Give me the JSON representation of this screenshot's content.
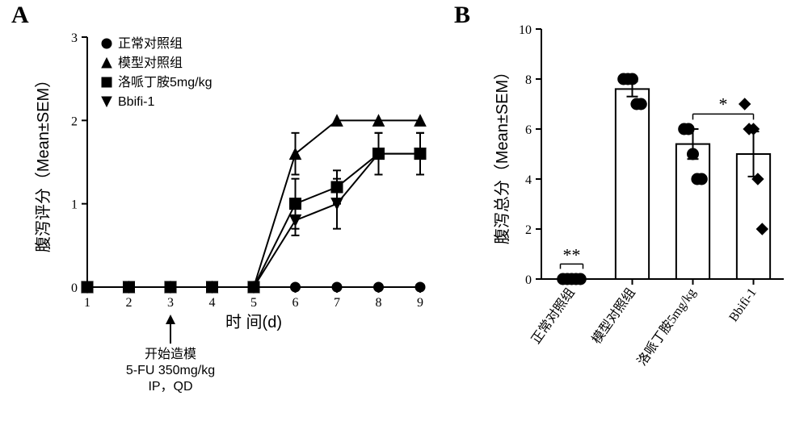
{
  "panelA": {
    "label": "A",
    "type": "line",
    "xlabel": "时 间(d)",
    "xlabel_fontsize": 20,
    "ylabel": "腹泻评分（Mean±SEM）",
    "ylabel_fontsize": 20,
    "xlim": [
      1,
      9
    ],
    "ylim": [
      0,
      3
    ],
    "xticks": [
      1,
      2,
      3,
      4,
      5,
      6,
      7,
      8,
      9
    ],
    "yticks": [
      0,
      1,
      2,
      3
    ],
    "tick_fontsize": 16,
    "axis_color": "#000000",
    "axis_width": 2,
    "background_color": "#ffffff",
    "annotation": {
      "x": 3,
      "arrow_from_y": 0.55,
      "lines": [
        "开始造模",
        "5-FU 350mg/kg",
        "IP，QD"
      ],
      "fontsize": 16
    },
    "legend": {
      "items": [
        {
          "marker": "circle",
          "label": "正常对照组"
        },
        {
          "marker": "up-triangle",
          "label": "模型对照组"
        },
        {
          "marker": "square",
          "label": "洛哌丁胺5mg/kg"
        },
        {
          "marker": "down-triangle",
          "label": "Bbifi-1"
        }
      ],
      "fontsize": 16
    },
    "series": [
      {
        "name": "正常对照组",
        "marker": "circle",
        "marker_size": 6,
        "line_width": 2,
        "color": "#000000",
        "x": [
          1,
          2,
          3,
          4,
          5,
          6,
          7,
          8,
          9
        ],
        "y": [
          0,
          0,
          0,
          0,
          0,
          0,
          0,
          0,
          0
        ],
        "err": [
          0,
          0,
          0,
          0,
          0,
          0,
          0,
          0,
          0
        ]
      },
      {
        "name": "模型对照组",
        "marker": "up-triangle",
        "marker_size": 7,
        "line_width": 2,
        "color": "#000000",
        "x": [
          1,
          2,
          3,
          4,
          5,
          6,
          7,
          8,
          9
        ],
        "y": [
          0,
          0,
          0,
          0,
          0,
          1.6,
          2.0,
          2.0,
          2.0
        ],
        "err": [
          0,
          0,
          0,
          0,
          0,
          0.25,
          0,
          0,
          0
        ]
      },
      {
        "name": "洛哌丁胺5mg/kg",
        "marker": "square",
        "marker_size": 7,
        "line_width": 2,
        "color": "#000000",
        "x": [
          1,
          2,
          3,
          4,
          5,
          6,
          7,
          8,
          9
        ],
        "y": [
          0,
          0,
          0,
          0,
          0,
          1.0,
          1.2,
          1.6,
          1.6
        ],
        "err": [
          0,
          0,
          0,
          0,
          0,
          0.3,
          0.2,
          0.25,
          0.25
        ]
      },
      {
        "name": "Bbifi-1",
        "marker": "down-triangle",
        "marker_size": 7,
        "line_width": 2,
        "color": "#000000",
        "x": [
          1,
          2,
          3,
          4,
          5,
          6,
          7,
          8,
          9
        ],
        "y": [
          0,
          0,
          0,
          0,
          0,
          0.8,
          1.0,
          1.6,
          1.6
        ],
        "err": [
          0,
          0,
          0,
          0,
          0,
          0.18,
          0.3,
          0.25,
          0.25
        ]
      }
    ]
  },
  "panelB": {
    "label": "B",
    "type": "bar-scatter",
    "ylabel": "腹泻总分（Mean±SEM）",
    "ylabel_fontsize": 20,
    "ylim": [
      0,
      10
    ],
    "yticks": [
      0,
      2,
      4,
      6,
      8,
      10
    ],
    "tick_fontsize": 16,
    "axis_color": "#000000",
    "axis_width": 2,
    "background_color": "#ffffff",
    "bar_fill": "#ffffff",
    "bar_stroke": "#000000",
    "bar_width": 0.55,
    "point_color": "#000000",
    "point_size": 7,
    "categories": [
      {
        "label": "正常对照组",
        "mean": 0.0,
        "sem": 0.0,
        "points": [
          0,
          0,
          0,
          0,
          0
        ],
        "marker": "circle"
      },
      {
        "label": "模型对照组",
        "mean": 7.6,
        "sem": 0.3,
        "points": [
          8,
          8,
          8,
          7,
          7
        ],
        "marker": "circle"
      },
      {
        "label": "洛哌丁胺5mg/kg",
        "mean": 5.4,
        "sem": 0.6,
        "points": [
          6,
          6,
          5,
          4,
          4
        ],
        "marker": "circle"
      },
      {
        "label": "Bbifi-1",
        "mean": 5.0,
        "sem": 0.9,
        "points": [
          7,
          6,
          6,
          4,
          2
        ],
        "marker": "diamond"
      }
    ],
    "significance": [
      {
        "from": 0,
        "to": 0,
        "y": 0.6,
        "label": "**",
        "show_bar": false
      },
      {
        "from": 2,
        "to": 3,
        "y": 6.6,
        "label": "*",
        "show_bar": true
      }
    ]
  }
}
